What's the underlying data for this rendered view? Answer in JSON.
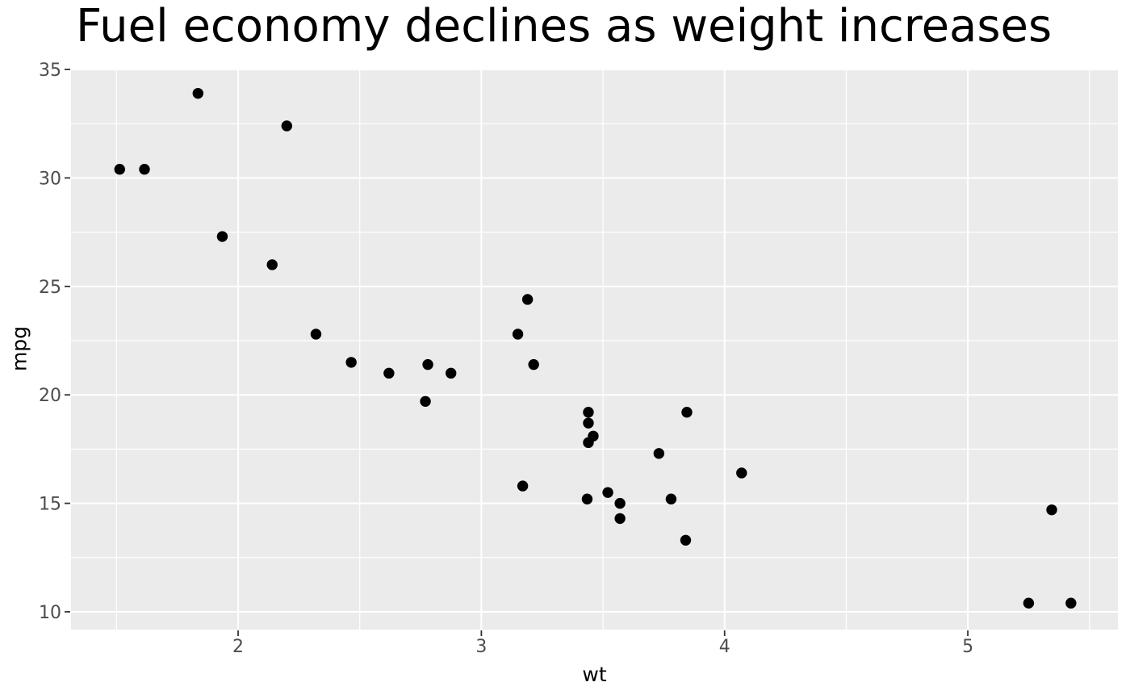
{
  "title": "Fuel economy declines as weight increases",
  "chart_data": {
    "type": "scatter",
    "title": "Fuel economy declines as weight increases",
    "xlabel": "wt",
    "ylabel": "mpg",
    "xlim": [
      1.313,
      5.617
    ],
    "ylim": [
      9.18,
      35.04
    ],
    "x_ticks": [
      2,
      3,
      4,
      5
    ],
    "y_ticks": [
      10,
      15,
      20,
      25,
      30,
      35
    ],
    "x_minor_ticks": [
      1.5,
      2.5,
      3.5,
      4.5,
      5.5
    ],
    "y_minor_ticks": [
      12.5,
      17.5,
      22.5,
      27.5,
      32.5
    ],
    "grid": "on",
    "legend": "none",
    "series": [
      {
        "name": "points",
        "points": [
          [
            2.62,
            21.0
          ],
          [
            2.875,
            21.0
          ],
          [
            2.32,
            22.8
          ],
          [
            3.215,
            21.4
          ],
          [
            3.44,
            18.7
          ],
          [
            3.46,
            18.1
          ],
          [
            3.57,
            14.3
          ],
          [
            3.19,
            24.4
          ],
          [
            3.15,
            22.8
          ],
          [
            3.44,
            19.2
          ],
          [
            3.44,
            17.8
          ],
          [
            4.07,
            16.4
          ],
          [
            3.73,
            17.3
          ],
          [
            3.78,
            15.2
          ],
          [
            5.25,
            10.4
          ],
          [
            5.424,
            10.4
          ],
          [
            5.345,
            14.7
          ],
          [
            2.2,
            32.4
          ],
          [
            1.615,
            30.4
          ],
          [
            1.835,
            33.9
          ],
          [
            2.465,
            21.5
          ],
          [
            3.52,
            15.5
          ],
          [
            3.435,
            15.2
          ],
          [
            3.84,
            13.3
          ],
          [
            3.845,
            19.2
          ],
          [
            1.935,
            27.3
          ],
          [
            2.14,
            26.0
          ],
          [
            1.513,
            30.4
          ],
          [
            3.17,
            15.8
          ],
          [
            2.77,
            19.7
          ],
          [
            3.57,
            15.0
          ],
          [
            2.78,
            21.4
          ]
        ]
      }
    ]
  },
  "style": {
    "background": "#FFFFFF",
    "panel_bg": "#EBEBEB",
    "grid_color": "#FFFFFF",
    "tick_color": "#333333",
    "tick_label_color": "#4D4D4D",
    "text_color": "#000000",
    "point_color": "#000000",
    "point_radius": 6.7
  }
}
